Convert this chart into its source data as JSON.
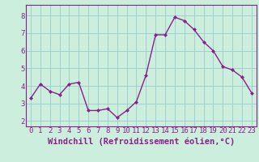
{
  "x": [
    0,
    1,
    2,
    3,
    4,
    5,
    6,
    7,
    8,
    9,
    10,
    11,
    12,
    13,
    14,
    15,
    16,
    17,
    18,
    19,
    20,
    21,
    22,
    23
  ],
  "y": [
    3.3,
    4.1,
    3.7,
    3.5,
    4.1,
    4.2,
    2.6,
    2.6,
    2.7,
    2.2,
    2.6,
    3.1,
    4.6,
    6.9,
    6.9,
    7.9,
    7.7,
    7.2,
    6.5,
    6.0,
    5.1,
    4.9,
    4.5,
    3.6
  ],
  "line_color": "#882288",
  "marker": "D",
  "marker_size": 2.0,
  "linewidth": 1.0,
  "bg_color": "#cceedd",
  "grid_color": "#99cccc",
  "xlabel": "Windchill (Refroidissement éolien,°C)",
  "xlabel_fontsize": 7.5,
  "xlabel_color": "#882288",
  "tick_color": "#882288",
  "tick_fontsize": 6.5,
  "ylim": [
    1.7,
    8.6
  ],
  "yticks": [
    2,
    3,
    4,
    5,
    6,
    7,
    8
  ],
  "xticks": [
    0,
    1,
    2,
    3,
    4,
    5,
    6,
    7,
    8,
    9,
    10,
    11,
    12,
    13,
    14,
    15,
    16,
    17,
    18,
    19,
    20,
    21,
    22,
    23
  ]
}
